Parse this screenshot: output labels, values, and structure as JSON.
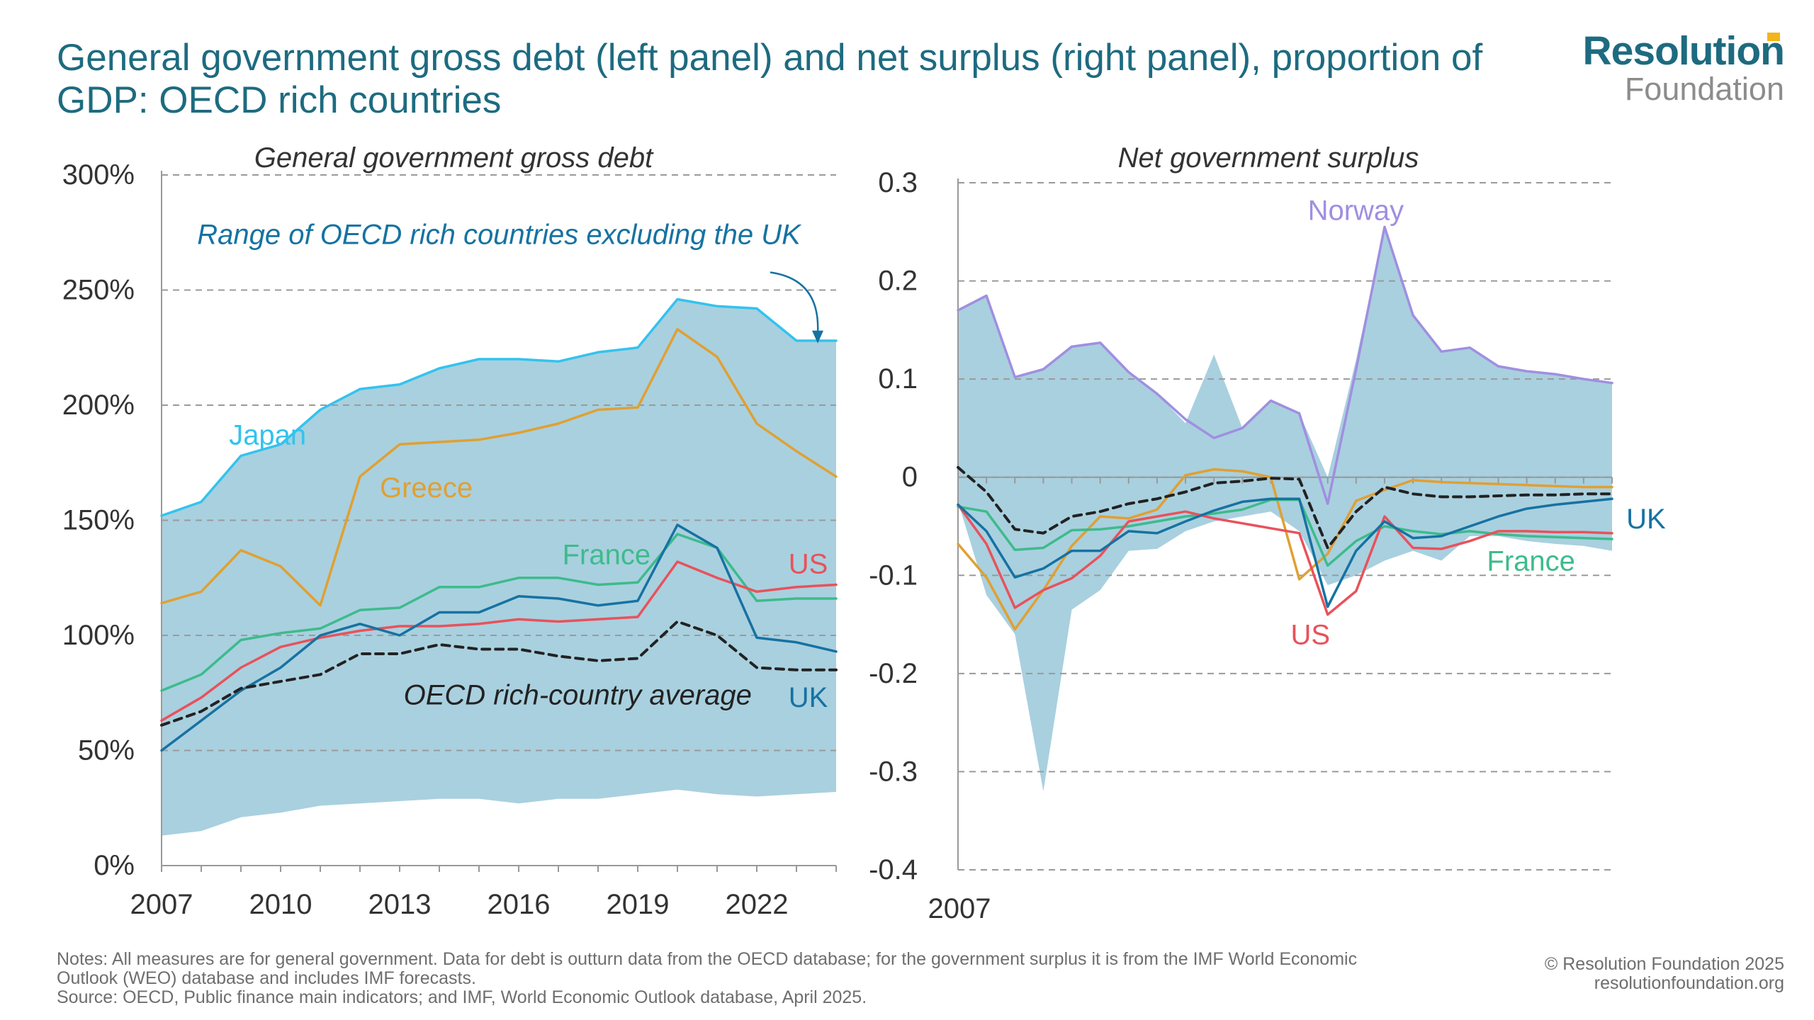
{
  "title": "General government gross debt (left panel) and net surplus (right panel), proportion of GDP: OECD rich countries",
  "logo": {
    "line1": "Resolution",
    "line2": "Foundation",
    "accent": "#f3b51b"
  },
  "notes": {
    "line1": "Notes: All measures are for general government. Data for debt is outturn data from the OECD database; for the government surplus it is from the IMF World Economic",
    "line2": "Outlook (WEO) database and includes IMF forecasts.",
    "line3": "Source: OECD, Public finance main indicators; and IMF, World Economic Outlook database, April 2025."
  },
  "credits": {
    "line1": "© Resolution Foundation 2025",
    "line2": "resolutionfoundation.org"
  },
  "colors": {
    "range": "#a9d0df",
    "japan": "#33c3ee",
    "greece": "#e0a032",
    "france": "#3dbb8c",
    "us": "#e8525b",
    "uk": "#1672a2",
    "average": "#222222",
    "norway": "#a08fe0",
    "grid": "#9a9a9a",
    "axis_text": "#333333",
    "annotation": "#1672a2"
  },
  "chart_data": [
    {
      "type": "line",
      "title": "General government gross debt",
      "x": [
        2007,
        2008,
        2009,
        2010,
        2011,
        2012,
        2013,
        2014,
        2015,
        2016,
        2017,
        2018,
        2019,
        2020,
        2021,
        2022,
        2023,
        2024
      ],
      "x_ticks": [
        2007,
        2010,
        2013,
        2016,
        2019,
        2022
      ],
      "x_tick_labels": [
        "2007",
        "2010",
        "2013",
        "2016",
        "2019",
        "2022"
      ],
      "ylim": [
        0,
        300
      ],
      "y_ticks": [
        0,
        50,
        100,
        150,
        200,
        250,
        300
      ],
      "y_tick_labels": [
        "0%",
        "50%",
        "100%",
        "150%",
        "200%",
        "250%",
        "300%"
      ],
      "grid": true,
      "range_band": {
        "name": "Range of OECD rich countries excluding the UK",
        "upper": [
          152,
          158,
          178,
          183,
          198,
          207,
          209,
          216,
          220,
          220,
          219,
          223,
          225,
          246,
          243,
          242,
          228,
          228
        ],
        "lower": [
          13,
          15,
          21,
          23,
          26,
          27,
          28,
          29,
          29,
          27,
          29,
          29,
          31,
          33,
          31,
          30,
          31,
          32
        ]
      },
      "series": [
        {
          "name": "Japan",
          "color_key": "japan",
          "dashed": false,
          "values": [
            152,
            158,
            178,
            183,
            198,
            207,
            209,
            216,
            220,
            220,
            219,
            223,
            225,
            246,
            243,
            242,
            228,
            228
          ]
        },
        {
          "name": "Greece",
          "color_key": "greece",
          "dashed": false,
          "values": [
            114,
            119,
            137,
            130,
            113,
            169,
            183,
            184,
            185,
            188,
            192,
            198,
            199,
            233,
            221,
            192,
            180,
            169
          ]
        },
        {
          "name": "France",
          "color_key": "france",
          "dashed": false,
          "values": [
            76,
            83,
            98,
            101,
            103,
            111,
            112,
            121,
            121,
            125,
            125,
            122,
            123,
            144,
            138,
            115,
            116,
            116
          ]
        },
        {
          "name": "US",
          "color_key": "us",
          "dashed": false,
          "values": [
            63,
            73,
            86,
            95,
            99,
            102,
            104,
            104,
            105,
            107,
            106,
            107,
            108,
            132,
            125,
            119,
            121,
            122
          ]
        },
        {
          "name": "UK",
          "color_key": "uk",
          "dashed": false,
          "values": [
            50,
            63,
            76,
            86,
            100,
            105,
            100,
            110,
            110,
            117,
            116,
            113,
            115,
            148,
            138,
            99,
            97,
            93
          ]
        },
        {
          "name": "OECD rich-country average",
          "color_key": "average",
          "dashed": true,
          "values": [
            61,
            67,
            77,
            80,
            83,
            92,
            92,
            96,
            94,
            94,
            91,
            89,
            90,
            106,
            100,
            86,
            85,
            85
          ]
        }
      ],
      "labels": [
        {
          "text": "Japan",
          "color_key": "japan",
          "x": 2008.7,
          "y": 183
        },
        {
          "text": "Greece",
          "color_key": "greece",
          "x": 2012.5,
          "y": 160
        },
        {
          "text": "France",
          "color_key": "france",
          "x": 2017.1,
          "y": 131
        },
        {
          "text": "US",
          "color_key": "us",
          "x": 2022.8,
          "y": 127
        },
        {
          "text": "UK",
          "color_key": "uk",
          "x": 2022.8,
          "y": 69
        },
        {
          "text": "OECD rich-country average",
          "color_key": "average",
          "x": 2013.1,
          "y": 70
        }
      ],
      "annotation": {
        "text": "Range of OECD rich countries excluding the UK",
        "x": 2015.5,
        "y": 270,
        "arrow_to": [
          2023.5,
          225
        ]
      }
    },
    {
      "type": "line",
      "title": "Net government surplus",
      "x": [
        2007,
        2008,
        2009,
        2010,
        2011,
        2012,
        2013,
        2014,
        2015,
        2016,
        2017,
        2018,
        2019,
        2020,
        2021,
        2022,
        2023,
        2024,
        2025,
        2026,
        2027,
        2028,
        2029,
        2030
      ],
      "x_ticks": [
        2007
      ],
      "x_tick_labels": [
        "2007"
      ],
      "ylim": [
        -0.4,
        0.3
      ],
      "y_ticks": [
        -0.4,
        -0.3,
        -0.2,
        -0.1,
        0,
        0.1,
        0.2,
        0.3
      ],
      "y_tick_labels": [
        "-0.4",
        "-0.3",
        "-0.2",
        "-0.1",
        "0",
        "0.1",
        "0.2",
        "0.3"
      ],
      "grid": true,
      "range_band": {
        "upper": [
          0.17,
          0.185,
          0.102,
          0.11,
          0.133,
          0.137,
          0.107,
          0.085,
          0.055,
          0.125,
          0.05,
          0.078,
          0.065,
          0.0,
          0.12,
          0.255,
          0.165,
          0.128,
          0.132,
          0.113,
          0.108,
          0.105,
          0.1,
          0.096
        ],
        "lower": [
          -0.025,
          -0.12,
          -0.16,
          -0.32,
          -0.135,
          -0.115,
          -0.075,
          -0.073,
          -0.055,
          -0.045,
          -0.04,
          -0.035,
          -0.055,
          -0.11,
          -0.1,
          -0.085,
          -0.075,
          -0.085,
          -0.06,
          -0.06,
          -0.065,
          -0.068,
          -0.07,
          -0.075
        ]
      },
      "series": [
        {
          "name": "Norway",
          "color_key": "norway",
          "dashed": false,
          "values": [
            0.17,
            0.185,
            0.102,
            0.11,
            0.133,
            0.137,
            0.107,
            0.085,
            0.059,
            0.04,
            0.05,
            0.078,
            0.065,
            -0.027,
            0.11,
            0.255,
            0.165,
            0.128,
            0.132,
            0.113,
            0.108,
            0.105,
            0.1,
            0.096
          ]
        },
        {
          "name": "Greece",
          "color_key": "greece",
          "dashed": false,
          "values": [
            -0.068,
            -0.102,
            -0.155,
            -0.115,
            -0.07,
            -0.04,
            -0.042,
            -0.033,
            0.002,
            0.008,
            0.006,
            0.0,
            -0.104,
            -0.078,
            -0.024,
            -0.013,
            -0.003,
            -0.005,
            -0.006,
            -0.007,
            -0.008,
            -0.009,
            -0.01,
            -0.01
          ]
        },
        {
          "name": "France",
          "color_key": "france",
          "dashed": false,
          "values": [
            -0.03,
            -0.035,
            -0.074,
            -0.072,
            -0.054,
            -0.053,
            -0.05,
            -0.045,
            -0.04,
            -0.037,
            -0.033,
            -0.023,
            -0.023,
            -0.09,
            -0.065,
            -0.05,
            -0.055,
            -0.058,
            -0.055,
            -0.058,
            -0.06,
            -0.061,
            -0.062,
            -0.063
          ]
        },
        {
          "name": "US",
          "color_key": "us",
          "dashed": false,
          "values": [
            -0.028,
            -0.068,
            -0.133,
            -0.115,
            -0.103,
            -0.08,
            -0.045,
            -0.04,
            -0.035,
            -0.042,
            -0.047,
            -0.052,
            -0.057,
            -0.14,
            -0.116,
            -0.04,
            -0.072,
            -0.073,
            -0.065,
            -0.055,
            -0.055,
            -0.056,
            -0.056,
            -0.057
          ]
        },
        {
          "name": "UK",
          "color_key": "uk",
          "dashed": false,
          "values": [
            -0.028,
            -0.055,
            -0.102,
            -0.093,
            -0.075,
            -0.075,
            -0.055,
            -0.057,
            -0.045,
            -0.034,
            -0.025,
            -0.022,
            -0.022,
            -0.132,
            -0.075,
            -0.045,
            -0.062,
            -0.06,
            -0.05,
            -0.04,
            -0.032,
            -0.028,
            -0.025,
            -0.022
          ]
        },
        {
          "name": "OECD rich-country average",
          "color_key": "average",
          "dashed": true,
          "values": [
            0.01,
            -0.015,
            -0.053,
            -0.057,
            -0.04,
            -0.035,
            -0.027,
            -0.022,
            -0.015,
            -0.006,
            -0.004,
            -0.001,
            -0.002,
            -0.072,
            -0.035,
            -0.01,
            -0.017,
            -0.02,
            -0.02,
            -0.019,
            -0.018,
            -0.018,
            -0.017,
            -0.017
          ]
        }
      ],
      "labels": [
        {
          "text": "Norway",
          "color_key": "norway",
          "x": 2019.3,
          "y": 0.262
        },
        {
          "text": "UK",
          "color_key": "uk",
          "x": 2030.5,
          "y": -0.052
        },
        {
          "text": "France",
          "color_key": "france",
          "x": 2025.6,
          "y": -0.095
        },
        {
          "text": "US",
          "color_key": "us",
          "x": 2018.7,
          "y": -0.17
        }
      ]
    }
  ]
}
